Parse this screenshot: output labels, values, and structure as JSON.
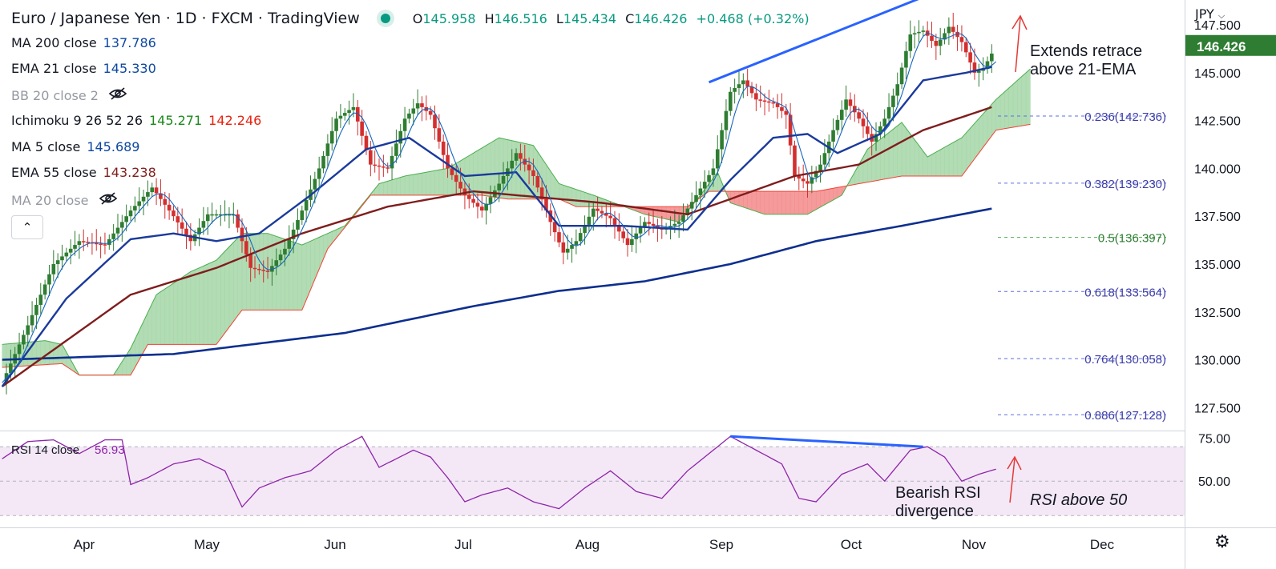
{
  "header": {
    "symbol": "Euro / Japanese Yen · 1D · FXCM · TradingView",
    "open_label": "O",
    "open": "145.958",
    "high_label": "H",
    "high": "146.516",
    "low_label": "L",
    "low": "145.434",
    "close_label": "C",
    "close": "146.426",
    "change": "+0.468 (+0.32%)"
  },
  "currency": "JPY",
  "currency_icon": "chevron-down-icon",
  "indicators": [
    {
      "name": "MA 200 close",
      "value": "137.786",
      "color": "#0d47a1"
    },
    {
      "name": "EMA 21 close",
      "value": "145.330",
      "color": "#0d47a1"
    },
    {
      "name": "BB 20 close 2",
      "hidden": true,
      "icon": "eye-off-icon"
    },
    {
      "name": "Ichimoku 9 26 52 26",
      "value": "145.271",
      "value2": "142.246",
      "color": "#1b8a1b",
      "color2": "#e8210e"
    },
    {
      "name": "MA 5 close",
      "value": "145.689",
      "color": "#0d47a1"
    },
    {
      "name": "EMA 55 close",
      "value": "143.238",
      "color": "#7f1d1d"
    },
    {
      "name": "MA 20 close",
      "hidden": true,
      "icon": "eye-off-icon"
    }
  ],
  "collapse_icon": "chevron-up-icon",
  "price_badge": "146.426",
  "rsi_label": "RSI 14 close",
  "rsi_value": "56.93",
  "annotations": {
    "top_right_line1": "Extends retrace",
    "top_right_line2": "above 21-EMA",
    "rsi_div_line1": "Bearish RSI",
    "rsi_div_line2": "divergence",
    "rsi_above": "RSI above 50"
  },
  "settings_icon": "gear-icon",
  "colors": {
    "up": "#2e7d32",
    "down": "#d32f2f",
    "cloud_bull": "#a5d6a7",
    "cloud_bear": "#f48a8a",
    "ma200": "#0d2f8f",
    "ema21": "#1a3a9c",
    "ema55": "#7f1d1d",
    "fib_blue": "#5b6ee1",
    "rsi": "#8e24aa",
    "trend": "#2962ff",
    "badge": "#2e7d32"
  },
  "chart_data": {
    "type": "candlestick",
    "x_labels": [
      "Apr",
      "May",
      "Jun",
      "Jul",
      "Aug",
      "Sep",
      "Oct",
      "Nov",
      "Dec"
    ],
    "y_ticks": [
      "147.500",
      "145.000",
      "142.500",
      "140.000",
      "137.500",
      "135.000",
      "132.500",
      "130.000",
      "127.500"
    ],
    "ylim": [
      126.3,
      148.8
    ],
    "rsi_ticks": [
      "75.00",
      "50.00"
    ],
    "rsi_ylim": [
      25,
      78
    ],
    "fibonacci": [
      {
        "label": "0.236(142.736)",
        "value": 142.736
      },
      {
        "label": "0.382(139.230)",
        "value": 139.23
      },
      {
        "label": "0.5(136.397)",
        "value": 136.397
      },
      {
        "label": "0.618(133.564)",
        "value": 133.564
      },
      {
        "label": "0.764(130.058)",
        "value": 130.058
      },
      {
        "label": "0.886(127.128)",
        "value": 127.128
      }
    ],
    "price_knots": [
      [
        0,
        128.8
      ],
      [
        6,
        131.8
      ],
      [
        12,
        135.0
      ],
      [
        18,
        136.2
      ],
      [
        24,
        136.0
      ],
      [
        30,
        137.8
      ],
      [
        35,
        139.0
      ],
      [
        40,
        137.5
      ],
      [
        44,
        136.2
      ],
      [
        48,
        137.6
      ],
      [
        54,
        137.6
      ],
      [
        58,
        134.8
      ],
      [
        62,
        134.6
      ],
      [
        66,
        135.8
      ],
      [
        70,
        137.8
      ],
      [
        74,
        140.0
      ],
      [
        78,
        142.6
      ],
      [
        82,
        143.2
      ],
      [
        86,
        140.2
      ],
      [
        90,
        140.0
      ],
      [
        94,
        142.6
      ],
      [
        97,
        143.4
      ],
      [
        100,
        142.8
      ],
      [
        104,
        140.0
      ],
      [
        108,
        138.6
      ],
      [
        112,
        137.8
      ],
      [
        116,
        139.2
      ],
      [
        120,
        140.8
      ],
      [
        124,
        139.6
      ],
      [
        128,
        137.2
      ],
      [
        131,
        135.6
      ],
      [
        134,
        136.2
      ],
      [
        138,
        137.9
      ],
      [
        142,
        137.4
      ],
      [
        146,
        136.0
      ],
      [
        150,
        137.2
      ],
      [
        154,
        136.8
      ],
      [
        158,
        137.2
      ],
      [
        162,
        138.6
      ],
      [
        166,
        140.0
      ],
      [
        170,
        144.0
      ],
      [
        173,
        144.6
      ],
      [
        176,
        143.6
      ],
      [
        180,
        143.4
      ],
      [
        183,
        142.8
      ],
      [
        185,
        139.6
      ],
      [
        188,
        139.2
      ],
      [
        191,
        140.2
      ],
      [
        194,
        142.0
      ],
      [
        197,
        143.6
      ],
      [
        200,
        142.6
      ],
      [
        203,
        141.4
      ],
      [
        206,
        142.6
      ],
      [
        209,
        144.4
      ],
      [
        212,
        147.0
      ],
      [
        215,
        147.2
      ],
      [
        218,
        146.4
      ],
      [
        221,
        147.4
      ],
      [
        224,
        146.6
      ],
      [
        227,
        145.0
      ],
      [
        229,
        145.2
      ],
      [
        231,
        146.0
      ]
    ],
    "ma200_knots": [
      [
        0,
        130.0
      ],
      [
        40,
        130.3
      ],
      [
        80,
        131.4
      ],
      [
        110,
        132.8
      ],
      [
        130,
        133.6
      ],
      [
        150,
        134.1
      ],
      [
        170,
        135.0
      ],
      [
        190,
        136.2
      ],
      [
        210,
        137.0
      ],
      [
        231,
        137.9
      ]
    ],
    "ema55_knots": [
      [
        0,
        128.6
      ],
      [
        30,
        133.4
      ],
      [
        50,
        134.8
      ],
      [
        70,
        136.6
      ],
      [
        90,
        138.0
      ],
      [
        110,
        138.8
      ],
      [
        140,
        138.2
      ],
      [
        160,
        137.6
      ],
      [
        170,
        138.4
      ],
      [
        185,
        139.6
      ],
      [
        200,
        140.2
      ],
      [
        215,
        142.0
      ],
      [
        231,
        143.2
      ]
    ],
    "ema21_knots": [
      [
        0,
        128.6
      ],
      [
        15,
        133.2
      ],
      [
        30,
        136.3
      ],
      [
        40,
        136.6
      ],
      [
        50,
        136.2
      ],
      [
        60,
        136.6
      ],
      [
        72,
        138.6
      ],
      [
        85,
        141.0
      ],
      [
        95,
        141.6
      ],
      [
        108,
        139.6
      ],
      [
        120,
        139.8
      ],
      [
        130,
        137.0
      ],
      [
        145,
        137.0
      ],
      [
        160,
        136.8
      ],
      [
        170,
        139.4
      ],
      [
        180,
        141.6
      ],
      [
        188,
        141.8
      ],
      [
        195,
        140.8
      ],
      [
        205,
        141.8
      ],
      [
        215,
        144.6
      ],
      [
        225,
        145.0
      ],
      [
        231,
        145.3
      ]
    ],
    "span_a_knots": [
      [
        0,
        130.8
      ],
      [
        10,
        131.0
      ],
      [
        14,
        130.8
      ],
      [
        18,
        129.2
      ],
      [
        26,
        129.2
      ],
      [
        30,
        130.6
      ],
      [
        36,
        133.4
      ],
      [
        44,
        134.6
      ],
      [
        50,
        135.2
      ],
      [
        56,
        136.6
      ],
      [
        62,
        136.6
      ],
      [
        70,
        136.0
      ],
      [
        80,
        137.0
      ],
      [
        88,
        139.2
      ],
      [
        94,
        139.6
      ],
      [
        104,
        140.0
      ],
      [
        110,
        140.8
      ],
      [
        116,
        141.6
      ],
      [
        124,
        141.2
      ],
      [
        130,
        139.2
      ],
      [
        138,
        138.6
      ],
      [
        150,
        137.6
      ],
      [
        158,
        137.2
      ],
      [
        163,
        138.6
      ],
      [
        167,
        139.8
      ],
      [
        170,
        138.2
      ],
      [
        178,
        137.6
      ],
      [
        188,
        137.6
      ],
      [
        196,
        138.6
      ],
      [
        202,
        141.0
      ],
      [
        210,
        142.4
      ],
      [
        216,
        140.6
      ],
      [
        224,
        141.6
      ],
      [
        232,
        143.6
      ],
      [
        240,
        145.2
      ]
    ],
    "span_b_knots": [
      [
        0,
        129.6
      ],
      [
        14,
        129.8
      ],
      [
        18,
        129.2
      ],
      [
        30,
        129.2
      ],
      [
        34,
        130.8
      ],
      [
        50,
        130.8
      ],
      [
        56,
        132.6
      ],
      [
        70,
        132.6
      ],
      [
        76,
        135.8
      ],
      [
        86,
        138.6
      ],
      [
        112,
        138.6
      ],
      [
        118,
        138.4
      ],
      [
        130,
        138.4
      ],
      [
        134,
        138.0
      ],
      [
        150,
        138.0
      ],
      [
        160,
        138.0
      ],
      [
        165,
        138.8
      ],
      [
        190,
        138.8
      ],
      [
        210,
        139.6
      ],
      [
        224,
        139.6
      ],
      [
        232,
        142.0
      ],
      [
        240,
        142.3
      ]
    ],
    "rsi_knots": [
      [
        0,
        63
      ],
      [
        6,
        73
      ],
      [
        12,
        74
      ],
      [
        18,
        66
      ],
      [
        24,
        74
      ],
      [
        28,
        74
      ],
      [
        30,
        48
      ],
      [
        34,
        52
      ],
      [
        40,
        60
      ],
      [
        46,
        63
      ],
      [
        52,
        56
      ],
      [
        56,
        35
      ],
      [
        60,
        46
      ],
      [
        66,
        52
      ],
      [
        72,
        56
      ],
      [
        78,
        68
      ],
      [
        84,
        76
      ],
      [
        88,
        58
      ],
      [
        92,
        63
      ],
      [
        96,
        68
      ],
      [
        100,
        64
      ],
      [
        104,
        52
      ],
      [
        108,
        38
      ],
      [
        112,
        42
      ],
      [
        118,
        46
      ],
      [
        124,
        38
      ],
      [
        130,
        34
      ],
      [
        136,
        46
      ],
      [
        142,
        56
      ],
      [
        148,
        44
      ],
      [
        154,
        40
      ],
      [
        160,
        56
      ],
      [
        166,
        68
      ],
      [
        170,
        76
      ],
      [
        176,
        68
      ],
      [
        182,
        60
      ],
      [
        186,
        40
      ],
      [
        190,
        38
      ],
      [
        196,
        54
      ],
      [
        202,
        60
      ],
      [
        206,
        50
      ],
      [
        212,
        68
      ],
      [
        216,
        70
      ],
      [
        220,
        64
      ],
      [
        224,
        50
      ],
      [
        228,
        54
      ],
      [
        232,
        57
      ]
    ],
    "trendline_price": [
      [
        165,
        144.5
      ],
      [
        220,
        149.4
      ]
    ],
    "trendline_rsi": [
      [
        170,
        76
      ],
      [
        215,
        70
      ]
    ]
  }
}
